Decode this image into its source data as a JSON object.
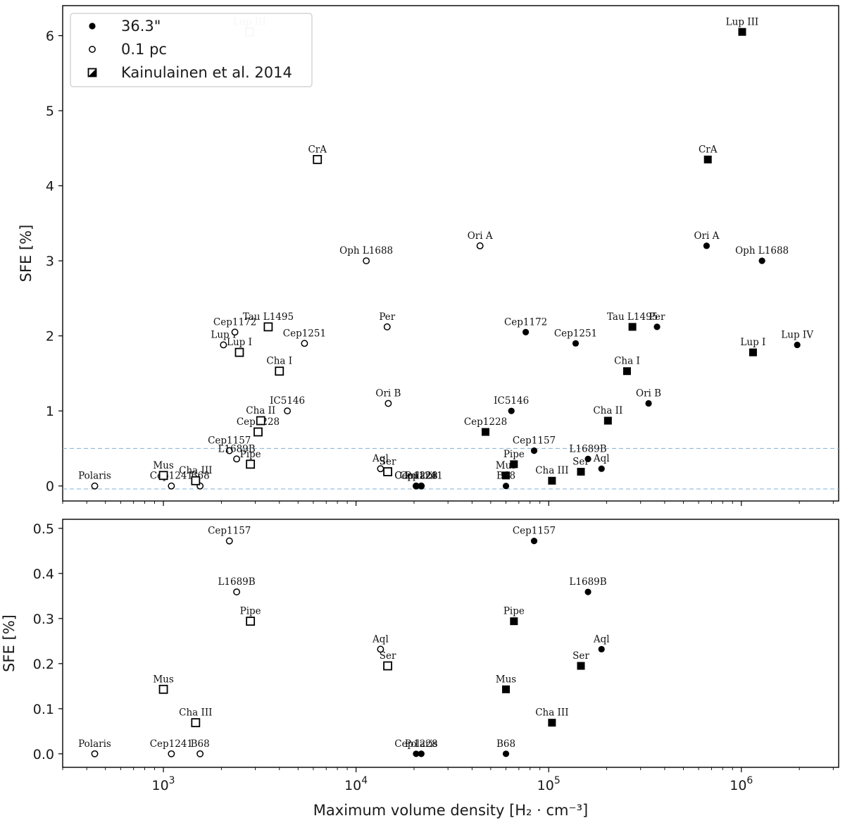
{
  "chart_data": [
    {
      "type": "scatter",
      "panel": "top",
      "xscale": "log",
      "xlim": [
        300,
        3200000
      ],
      "ylim": [
        -0.2,
        6.4
      ],
      "ylabel": "SFE [%]",
      "xlabel": "",
      "yticks": [
        0,
        1,
        2,
        3,
        4,
        5,
        6
      ],
      "ytick_labels": [
        "0",
        "1",
        "2",
        "3",
        "4",
        "5",
        "6"
      ],
      "xtick_labels": [],
      "hlines": [
        {
          "y": 0.5,
          "color": "#8fb9de",
          "style": "dashed"
        },
        {
          "y": -0.04,
          "color": "#8fb9de",
          "style": "dashed"
        }
      ],
      "legend": {
        "position": "top-left",
        "entries": [
          {
            "label": "36.3\"",
            "marker": "filled-circle"
          },
          {
            "label": "0.1 pc",
            "marker": "open-circle"
          },
          {
            "label": "Kainulainen et al. 2014",
            "marker": "half-square"
          }
        ]
      },
      "series": [
        {
          "marker": "open-circle",
          "points": [
            {
              "label": "Polaris",
              "x": 440,
              "y": 0.0
            },
            {
              "label": "Cep1241",
              "x": 1100,
              "y": 0.0
            },
            {
              "label": "B68",
              "x": 1550,
              "y": 0.0
            },
            {
              "label": "Cep1157",
              "x": 2200,
              "y": 0.47
            },
            {
              "label": "L1689B",
              "x": 2400,
              "y": 0.36
            },
            {
              "label": "Lup I",
              "x": 2050,
              "y": 1.88
            },
            {
              "label": "Cep1172",
              "x": 2350,
              "y": 2.05
            },
            {
              "label": "Cep1251",
              "x": 5400,
              "y": 1.9
            },
            {
              "label": "IC5146",
              "x": 4400,
              "y": 1.0
            },
            {
              "label": "Oph L1688",
              "x": 11300,
              "y": 3.0
            },
            {
              "label": "Per",
              "x": 14500,
              "y": 2.12
            },
            {
              "label": "Ori B",
              "x": 14700,
              "y": 1.1
            },
            {
              "label": "Aql",
              "x": 13400,
              "y": 0.23
            },
            {
              "label": "Ori A",
              "x": 44000,
              "y": 3.2
            },
            {
              "label": "Cep1228",
              "x": 20500,
              "y": 0.0
            },
            {
              "label": "Cep1241",
              "x": 21800,
              "y": 0.0
            }
          ]
        },
        {
          "marker": "filled-circle",
          "points": [
            {
              "label": "Cep1228",
              "x": 20500,
              "y": 0.0
            },
            {
              "label": "Polaris",
              "x": 21800,
              "y": 0.0
            },
            {
              "label": "B68",
              "x": 60000,
              "y": 0.0
            },
            {
              "label": "Cep1157",
              "x": 84000,
              "y": 0.47
            },
            {
              "label": "L1689B",
              "x": 160000,
              "y": 0.36
            },
            {
              "label": "Aql",
              "x": 188000,
              "y": 0.23
            },
            {
              "label": "IC5146",
              "x": 64000,
              "y": 1.0
            },
            {
              "label": "Cep1172",
              "x": 76000,
              "y": 2.05
            },
            {
              "label": "Cep1251",
              "x": 138000,
              "y": 1.9
            },
            {
              "label": "Ori B",
              "x": 330000,
              "y": 1.1
            },
            {
              "label": "Per",
              "x": 365000,
              "y": 2.12
            },
            {
              "label": "Ori A",
              "x": 660000,
              "y": 3.2
            },
            {
              "label": "Oph L1688",
              "x": 1280000,
              "y": 3.0
            },
            {
              "label": "Lup IV",
              "x": 1950000,
              "y": 1.88
            }
          ]
        },
        {
          "marker": "open-square",
          "points": [
            {
              "label": "Mus",
              "x": 1000,
              "y": 0.14
            },
            {
              "label": "Cha III",
              "x": 1470,
              "y": 0.07
            },
            {
              "label": "Pipe",
              "x": 2830,
              "y": 0.29
            },
            {
              "label": "Cep1228",
              "x": 3100,
              "y": 0.72
            },
            {
              "label": "Cha II",
              "x": 3200,
              "y": 0.87
            },
            {
              "label": "Lup I",
              "x": 2480,
              "y": 1.78
            },
            {
              "label": "Cha I",
              "x": 4000,
              "y": 1.53
            },
            {
              "label": "Tau L1495",
              "x": 3500,
              "y": 2.12
            },
            {
              "label": "CrA",
              "x": 6300,
              "y": 4.35
            },
            {
              "label": "Ser",
              "x": 14600,
              "y": 0.19
            },
            {
              "label": "Lup III",
              "x": 2800,
              "y": 6.05,
              "faded": true
            }
          ]
        },
        {
          "marker": "filled-square",
          "points": [
            {
              "label": "Mus",
              "x": 60000,
              "y": 0.14
            },
            {
              "label": "Pipe",
              "x": 66000,
              "y": 0.29
            },
            {
              "label": "Cha III",
              "x": 104000,
              "y": 0.07
            },
            {
              "label": "Ser",
              "x": 147000,
              "y": 0.19
            },
            {
              "label": "Cep1228",
              "x": 47000,
              "y": 0.72
            },
            {
              "label": "Cha II",
              "x": 203000,
              "y": 0.87
            },
            {
              "label": "Cha I",
              "x": 255000,
              "y": 1.53
            },
            {
              "label": "Tau L1495",
              "x": 272000,
              "y": 2.12
            },
            {
              "label": "Lup I",
              "x": 1150000,
              "y": 1.78
            },
            {
              "label": "CrA",
              "x": 670000,
              "y": 4.35
            },
            {
              "label": "Lup III",
              "x": 1010000,
              "y": 6.05
            }
          ]
        }
      ]
    },
    {
      "type": "scatter",
      "panel": "bottom",
      "xscale": "log",
      "xlim": [
        300,
        3200000
      ],
      "ylim": [
        -0.03,
        0.52
      ],
      "ylabel": "SFE [%]",
      "xlabel": "Maximum volume density [H₂ · cm⁻³]",
      "yticks": [
        0,
        0.1,
        0.2,
        0.3,
        0.4,
        0.5
      ],
      "ytick_labels": [
        "0.0",
        "0.1",
        "0.2",
        "0.3",
        "0.4",
        "0.5"
      ],
      "xticks": [
        1000,
        10000,
        100000,
        1000000
      ],
      "xtick_labels": [
        {
          "base": "10",
          "exp": "3"
        },
        {
          "base": "10",
          "exp": "4"
        },
        {
          "base": "10",
          "exp": "5"
        },
        {
          "base": "10",
          "exp": "6"
        }
      ],
      "series": [
        {
          "marker": "open-circle",
          "points": [
            {
              "label": "Polaris",
              "x": 440,
              "y": 0.0
            },
            {
              "label": "Cep1241",
              "x": 1100,
              "y": 0.0
            },
            {
              "label": "B68",
              "x": 1550,
              "y": 0.0
            },
            {
              "label": "Cep1157",
              "x": 2200,
              "y": 0.472
            },
            {
              "label": "L1689B",
              "x": 2400,
              "y": 0.359
            },
            {
              "label": "Aql",
              "x": 13400,
              "y": 0.232
            }
          ]
        },
        {
          "marker": "filled-circle",
          "points": [
            {
              "label": "Cep1228",
              "x": 20500,
              "y": 0.0
            },
            {
              "label": "Polaris",
              "x": 21800,
              "y": 0.0
            },
            {
              "label": "Cep1241",
              "x": 21800,
              "y": 0.0,
              "hidden_label": true
            },
            {
              "label": "B68",
              "x": 60000,
              "y": 0.0
            },
            {
              "label": "Cep1157",
              "x": 84000,
              "y": 0.472
            },
            {
              "label": "L1689B",
              "x": 160000,
              "y": 0.359
            },
            {
              "label": "Aql",
              "x": 188000,
              "y": 0.232
            }
          ]
        },
        {
          "marker": "open-square",
          "points": [
            {
              "label": "Mus",
              "x": 1000,
              "y": 0.143
            },
            {
              "label": "Cha III",
              "x": 1470,
              "y": 0.069
            },
            {
              "label": "Pipe",
              "x": 2830,
              "y": 0.294
            },
            {
              "label": "Ser",
              "x": 14600,
              "y": 0.195
            }
          ]
        },
        {
          "marker": "filled-square",
          "points": [
            {
              "label": "Mus",
              "x": 60000,
              "y": 0.143
            },
            {
              "label": "Pipe",
              "x": 66000,
              "y": 0.294
            },
            {
              "label": "Cha III",
              "x": 104000,
              "y": 0.069
            },
            {
              "label": "Ser",
              "x": 147000,
              "y": 0.195
            }
          ]
        }
      ]
    }
  ]
}
